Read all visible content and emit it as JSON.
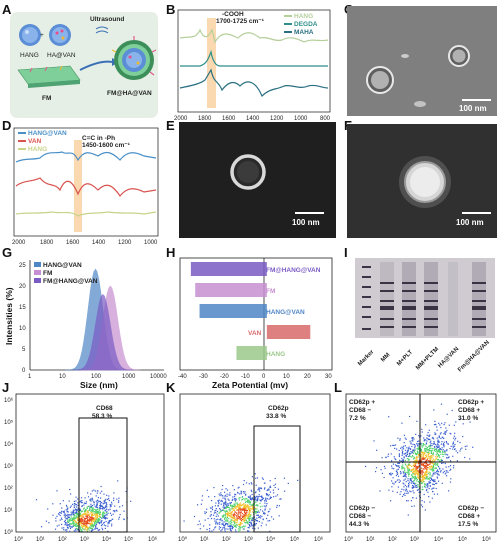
{
  "panelA": {
    "label": "A",
    "ultrasound": "Ultrasound",
    "hang": "HANG",
    "havan": "HA@VAN",
    "fm": "FM",
    "fmhavan": "FM@HA@VAN"
  },
  "panelB": {
    "label": "B",
    "annot1": "-COOH",
    "annot2": "1700-1725 cm⁻¹",
    "legend": [
      "HANG",
      "DEGDA",
      "MAHA"
    ],
    "legend_colors": [
      "#b5cf9b",
      "#2e8f8a",
      "#2a6f80"
    ],
    "xticks": [
      "2000",
      "1800",
      "1600",
      "1400",
      "1200",
      "1000",
      "800"
    ]
  },
  "panelC": {
    "label": "C",
    "scale": "100 nm"
  },
  "panelD": {
    "label": "D",
    "annot1": "C=C in -Ph",
    "annot2": "1450-1600 cm⁻¹",
    "legend": [
      "HANG@VAN",
      "VAN",
      "HANG"
    ],
    "legend_colors": [
      "#4a90c8",
      "#d9534f",
      "#c8d48a"
    ],
    "xticks": [
      "2000",
      "1800",
      "1600",
      "1400",
      "1200",
      "1000"
    ]
  },
  "panelE": {
    "label": "E",
    "scale": "100 nm"
  },
  "panelF": {
    "label": "F",
    "scale": "100 nm"
  },
  "panelG": {
    "label": "G",
    "ylabel": "Intensities (%)",
    "xlabel": "Size (nm)",
    "legend": [
      "HANG@VAN",
      "FM",
      "FM@HANG@VAN"
    ],
    "legend_colors": [
      "#4f86c6",
      "#c78fd1",
      "#7a5bc4"
    ],
    "yticks": [
      "0",
      "5",
      "10",
      "15",
      "20",
      "25"
    ],
    "xticks": [
      "1",
      "10",
      "100",
      "1000",
      "10000"
    ]
  },
  "panelH": {
    "label": "H",
    "xlabel": "Zeta Potential (mv)",
    "xticks": [
      "-40",
      "-30",
      "-20",
      "-10",
      "0",
      "10",
      "20",
      "30"
    ],
    "bar_labels": [
      "FM@HANG@VAN",
      "FM",
      "HANG@VAN",
      "VAN",
      "HANG"
    ],
    "label_colors": [
      "#7a5bc4",
      "#c78fd1",
      "#4f86c6",
      "#d96a6a",
      "#9bc88a"
    ]
  },
  "panelI": {
    "label": "I",
    "lanes": [
      "Marker",
      "MM",
      "M+PLT",
      "MM+PLTM",
      "HA@VAN",
      "Fm@HA@VAN"
    ]
  },
  "panelJ": {
    "label": "J",
    "gate": "CD68",
    "pct": "58.3 %",
    "ticks": [
      "10⁰",
      "10¹",
      "10²",
      "10³",
      "10⁴",
      "10⁵",
      "10⁶"
    ]
  },
  "panelK": {
    "label": "K",
    "gate": "CD62p",
    "pct": "33.8 %",
    "ticks": [
      "10⁰",
      "10¹",
      "10²",
      "10³",
      "10⁴",
      "10⁵",
      "10⁶"
    ]
  },
  "panelL": {
    "label": "L",
    "q1a": "CD62p +",
    "q1b": "CD68  −",
    "q1p": "7.2 %",
    "q2a": "CD62p +",
    "q2b": "CD68   +",
    "q2p": "31.0 %",
    "q3a": "CD62p −",
    "q3b": "CD68  −",
    "q3p": "44.3 %",
    "q4a": "CD62p −",
    "q4b": "CD68   +",
    "q4p": "17.5 %",
    "ticks": [
      "10⁰",
      "10¹",
      "10²",
      "10³",
      "10⁴",
      "10⁵",
      "10⁶"
    ]
  },
  "chart_data": [
    {
      "type": "bar",
      "title": "",
      "xlabel": "Zeta Potential (mv)",
      "ylabel": "",
      "categories": [
        "FM@HANG@VAN",
        "FM",
        "HANG@VAN",
        "VAN",
        "HANG"
      ],
      "values": [
        -35,
        -33,
        -31,
        20,
        -14
      ],
      "xlim": [
        -40,
        30
      ]
    },
    {
      "type": "area",
      "title": "",
      "xlabel": "Size (nm)",
      "ylabel": "Intensities (%)",
      "x_scale": "log",
      "xlim": [
        1,
        10000
      ],
      "ylim": [
        0,
        25
      ],
      "series": [
        {
          "name": "HANG@VAN",
          "peak_x": 90,
          "peak_y": 24
        },
        {
          "name": "FM",
          "peak_x": 250,
          "peak_y": 20
        },
        {
          "name": "FM@HANG@VAN",
          "peak_x": 150,
          "peak_y": 18
        }
      ]
    }
  ]
}
